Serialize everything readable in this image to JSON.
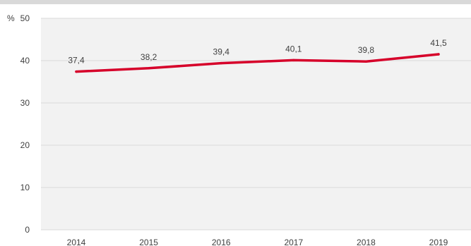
{
  "chart_data": {
    "type": "line",
    "title": "",
    "xlabel": "",
    "ylabel": "%",
    "x": [
      "2014",
      "2015",
      "2016",
      "2017",
      "2018",
      "2019"
    ],
    "series": [
      {
        "values": [
          37.4,
          38.2,
          39.4,
          40.1,
          39.8,
          41.5
        ],
        "labels": [
          "37,4",
          "38,2",
          "39,4",
          "40,1",
          "39,8",
          "41,5"
        ]
      }
    ],
    "ylim": [
      0,
      50
    ],
    "yticks": [
      0,
      10,
      20,
      30,
      40,
      50
    ],
    "grid": true,
    "legend": "none",
    "colors": {
      "line": "#d6002a",
      "plot_background": "#f2f2f2",
      "gridline": "#d9d9d9",
      "top_band": "#d9d9d9"
    }
  }
}
